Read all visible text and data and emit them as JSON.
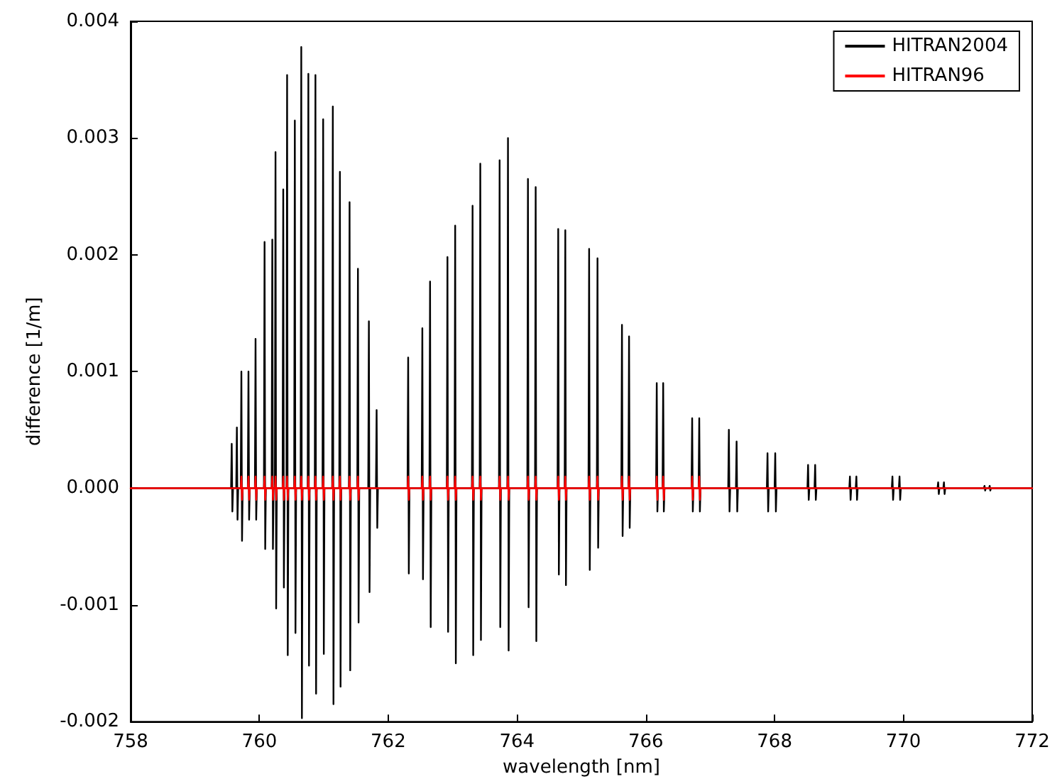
{
  "chart_data": {
    "type": "line",
    "xlabel": "wavelength [nm]",
    "ylabel": "difference [1/m]",
    "xlim": [
      758,
      772
    ],
    "xticks": [
      758,
      760,
      762,
      764,
      766,
      768,
      770,
      772
    ],
    "ylim": [
      -0.002,
      0.004
    ],
    "yticks": [
      {
        "value": -0.002,
        "label": "-0.002"
      },
      {
        "value": -0.001,
        "label": "-0.001"
      },
      {
        "value": 0,
        "label": "0.000"
      },
      {
        "value": 0.001,
        "label": "0.001"
      },
      {
        "value": 0.002,
        "label": "0.002"
      },
      {
        "value": 0.003,
        "label": "0.003"
      },
      {
        "value": 0.004,
        "label": "0.004"
      }
    ],
    "grid": false,
    "legend": "top right",
    "marker": "none",
    "line_style": "solid",
    "series": [
      {
        "name": "HITRAN2004",
        "color": "#000000",
        "x": [
          758,
          759.56,
          759.57,
          759.58,
          759.59,
          759.64,
          759.65,
          759.66,
          759.67,
          759.71,
          759.72,
          759.73,
          759.74,
          759.82,
          759.83,
          759.84,
          759.85,
          759.93,
          759.94,
          759.95,
          759.96,
          760.07,
          760.08,
          760.09,
          760.1,
          760.19,
          760.2,
          760.21,
          760.22,
          760.24,
          760.25,
          760.26,
          760.27,
          760.36,
          760.37,
          760.38,
          760.39,
          760.42,
          760.43,
          760.44,
          760.45,
          760.54,
          760.55,
          760.56,
          760.57,
          760.64,
          760.65,
          760.66,
          760.67,
          760.75,
          760.76,
          760.77,
          760.78,
          760.86,
          760.87,
          760.88,
          760.89,
          760.98,
          760.99,
          761,
          761.01,
          761.13,
          761.14,
          761.15,
          761.16,
          761.24,
          761.25,
          761.26,
          761.27,
          761.39,
          761.4,
          761.41,
          761.42,
          761.52,
          761.53,
          761.54,
          761.55,
          761.69,
          761.7,
          761.71,
          761.72,
          761.81,
          761.82,
          761.83,
          761.84,
          762.3,
          762.31,
          762.32,
          762.33,
          762.52,
          762.53,
          762.54,
          762.55,
          762.64,
          762.65,
          762.66,
          762.67,
          762.91,
          762.92,
          762.93,
          762.94,
          763.03,
          763.04,
          763.05,
          763.06,
          763.3,
          763.31,
          763.32,
          763.33,
          763.42,
          763.43,
          763.44,
          763.45,
          763.72,
          763.73,
          763.74,
          763.75,
          763.85,
          763.86,
          763.87,
          763.88,
          764.16,
          764.17,
          764.18,
          764.19,
          764.28,
          764.29,
          764.3,
          764.31,
          764.63,
          764.64,
          764.65,
          764.66,
          764.74,
          764.75,
          764.76,
          764.77,
          765.11,
          765.12,
          765.13,
          765.14,
          765.24,
          765.25,
          765.26,
          765.27,
          765.62,
          765.63,
          765.64,
          765.65,
          765.73,
          765.74,
          765.75,
          765.76,
          766.16,
          766.17,
          766.18,
          766.19,
          766.26,
          766.27,
          766.28,
          766.29,
          766.71,
          766.72,
          766.73,
          766.74,
          766.82,
          766.83,
          766.84,
          766.85,
          767.28,
          767.29,
          767.3,
          767.31,
          767.4,
          767.41,
          767.42,
          767.43,
          767.88,
          767.89,
          767.9,
          767.91,
          768,
          768.01,
          768.02,
          768.03,
          768.51,
          768.52,
          768.53,
          768.54,
          768.62,
          768.63,
          768.64,
          768.65,
          769.16,
          769.17,
          769.18,
          769.19,
          769.26,
          769.27,
          769.28,
          769.29,
          769.82,
          769.83,
          769.84,
          769.85,
          769.93,
          769.94,
          769.95,
          769.96,
          770.53,
          770.54,
          770.55,
          770.56,
          770.62,
          770.63,
          770.64,
          770.65,
          771.25,
          771.26,
          771.27,
          771.28,
          771.33,
          771.34,
          771.35,
          771.36,
          772
        ],
        "values": [
          0,
          0,
          0.00038,
          -0.0002,
          0,
          0,
          0.00052,
          -0.00027,
          0,
          0,
          0.001,
          -0.00045,
          0,
          0,
          0.001,
          -0.00027,
          0,
          0,
          0.00128,
          -0.00027,
          0,
          0,
          0.00211,
          -0.00052,
          0,
          0,
          0.00213,
          -0.00052,
          0,
          0,
          0.00288,
          -0.00103,
          0,
          0,
          0.00256,
          -0.00085,
          0,
          0,
          0.00354,
          -0.00143,
          0,
          0,
          0.00315,
          -0.00124,
          0,
          0,
          0.00378,
          -0.00197,
          0,
          0,
          0.00355,
          -0.00152,
          0,
          0,
          0.00354,
          -0.00176,
          0,
          0,
          0.00316,
          -0.00142,
          0,
          0,
          0.00327,
          -0.00185,
          0,
          0,
          0.00271,
          -0.0017,
          0,
          0,
          0.00245,
          -0.00156,
          0,
          0,
          0.00188,
          -0.00115,
          0,
          0,
          0.00143,
          -0.00089,
          0,
          0,
          0.00067,
          -0.00034,
          0,
          0,
          0.00112,
          -0.00073,
          0,
          0,
          0.00137,
          -0.00078,
          0,
          0,
          0.00177,
          -0.00119,
          0,
          0,
          0.00198,
          -0.00123,
          0,
          0,
          0.00225,
          -0.0015,
          0,
          0,
          0.00242,
          -0.00143,
          0,
          0,
          0.00278,
          -0.0013,
          0,
          0,
          0.00281,
          -0.00119,
          0,
          0,
          0.003,
          -0.00139,
          0,
          0,
          0.00265,
          -0.00102,
          0,
          0,
          0.00258,
          -0.00131,
          0,
          0,
          0.00222,
          -0.00074,
          0,
          0,
          0.00221,
          -0.00083,
          0,
          0,
          0.00205,
          -0.0007,
          0,
          0,
          0.00197,
          -0.00051,
          0,
          0,
          0.0014,
          -0.00041,
          0,
          0,
          0.0013,
          -0.00034,
          0,
          0,
          0.0009,
          -0.0002,
          0,
          0,
          0.0009,
          -0.0002,
          0,
          0,
          0.0006,
          -0.0002,
          0,
          0,
          0.0006,
          -0.0002,
          0,
          0,
          0.0005,
          -0.0002,
          0,
          0,
          0.0004,
          -0.0002,
          0,
          0,
          0.0003,
          -0.0002,
          0,
          0,
          0.0003,
          -0.0002,
          0,
          0,
          0.0002,
          -0.0001,
          0,
          0,
          0.0002,
          -0.0001,
          0,
          0,
          0.0001,
          -0.0001,
          0,
          0,
          0.0001,
          -0.0001,
          0,
          0,
          0.0001,
          -0.0001,
          0,
          0,
          0.0001,
          -0.0001,
          0,
          0,
          5e-05,
          -5e-05,
          0,
          0,
          5e-05,
          -5e-05,
          0,
          0,
          2e-05,
          -2e-05,
          0,
          0,
          2e-05,
          -2e-05,
          0,
          0
        ]
      },
      {
        "name": "HITRAN96",
        "color": "#ff0000",
        "x": [
          758,
          759.71,
          759.72,
          759.73,
          759.74,
          759.82,
          759.83,
          759.84,
          759.85,
          759.93,
          759.94,
          759.95,
          759.96,
          760.07,
          760.08,
          760.09,
          760.1,
          760.19,
          760.2,
          760.21,
          760.22,
          760.24,
          760.25,
          760.26,
          760.27,
          760.36,
          760.37,
          760.38,
          760.39,
          760.42,
          760.43,
          760.44,
          760.45,
          760.54,
          760.55,
          760.56,
          760.57,
          760.64,
          760.65,
          760.66,
          760.67,
          760.75,
          760.76,
          760.77,
          760.78,
          760.86,
          760.87,
          760.88,
          760.89,
          760.98,
          760.99,
          761,
          761.01,
          761.13,
          761.14,
          761.15,
          761.16,
          761.24,
          761.25,
          761.26,
          761.27,
          761.39,
          761.4,
          761.41,
          761.42,
          761.52,
          761.53,
          761.54,
          761.55,
          762.3,
          762.31,
          762.32,
          762.33,
          762.52,
          762.53,
          762.54,
          762.55,
          762.64,
          762.65,
          762.66,
          762.67,
          762.91,
          762.92,
          762.93,
          762.94,
          763.03,
          763.04,
          763.05,
          763.06,
          763.3,
          763.31,
          763.32,
          763.33,
          763.42,
          763.43,
          763.44,
          763.45,
          763.72,
          763.73,
          763.74,
          763.75,
          763.85,
          763.86,
          763.87,
          763.88,
          764.16,
          764.17,
          764.18,
          764.19,
          764.28,
          764.29,
          764.3,
          764.31,
          764.63,
          764.64,
          764.65,
          764.66,
          764.74,
          764.75,
          764.76,
          764.77,
          765.11,
          765.12,
          765.13,
          765.14,
          765.24,
          765.25,
          765.26,
          765.27,
          765.62,
          765.63,
          765.64,
          765.65,
          765.73,
          765.74,
          765.75,
          765.76,
          766.16,
          766.17,
          766.18,
          766.19,
          766.26,
          766.27,
          766.28,
          766.29,
          766.71,
          766.72,
          766.73,
          766.74,
          766.82,
          766.83,
          766.84,
          766.85,
          772
        ],
        "values": [
          0,
          0,
          0.0001,
          -0.0001,
          0,
          0,
          0.0001,
          -0.0001,
          0,
          0,
          0.0001,
          -0.0001,
          0,
          0,
          0.0001,
          -0.0001,
          0,
          0,
          0.0001,
          -0.0001,
          0,
          0,
          0.0001,
          -0.0001,
          0,
          0,
          0.0001,
          -0.0001,
          0,
          0,
          0.0001,
          -0.0001,
          0,
          0,
          0.0001,
          -0.0001,
          0,
          0,
          0.0001,
          -0.0001,
          0,
          0,
          0.0001,
          -0.0001,
          0,
          0,
          0.0001,
          -0.0001,
          0,
          0,
          0.0001,
          -0.0001,
          0,
          0,
          0.0001,
          -0.0001,
          0,
          0,
          0.0001,
          -0.0001,
          0,
          0,
          0.0001,
          -0.0001,
          0,
          0,
          0.0001,
          -0.0001,
          0,
          0,
          0.0001,
          -0.0001,
          0,
          0,
          0.0001,
          -0.0001,
          0,
          0,
          0.0001,
          -0.0001,
          0,
          0,
          0.0001,
          -0.0001,
          0,
          0,
          0.0001,
          -0.0001,
          0,
          0,
          0.0001,
          -0.0001,
          0,
          0,
          0.0001,
          -0.0001,
          0,
          0,
          0.0001,
          -0.0001,
          0,
          0,
          0.0001,
          -0.0001,
          0,
          0,
          0.0001,
          -0.0001,
          0,
          0,
          0.0001,
          -0.0001,
          0,
          0,
          0.0001,
          -0.0001,
          0,
          0,
          0.0001,
          -0.0001,
          0,
          0,
          0.0001,
          -0.0001,
          0,
          0,
          0.0001,
          -0.0001,
          0,
          0,
          0.0001,
          -0.0001,
          0,
          0,
          0.0001,
          -0.0001,
          0,
          0,
          0.0001,
          -0.0001,
          0,
          0,
          0.0001,
          -0.0001,
          0,
          0,
          0.0001,
          -0.0001,
          0,
          0,
          0.0001,
          -0.0001,
          0,
          0
        ]
      }
    ]
  }
}
